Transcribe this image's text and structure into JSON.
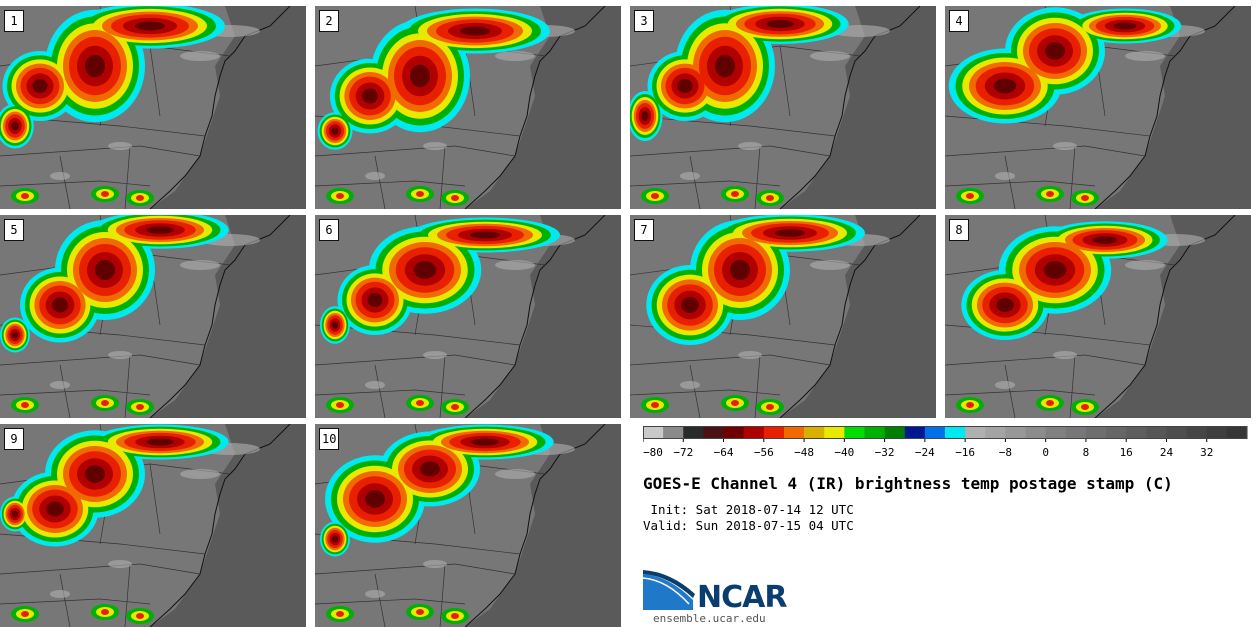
{
  "title": "GOES-E Channel 4 (IR) brightness temp postage stamp (C)",
  "init": " Init: Sat 2018-07-14 12 UTC",
  "valid": "Valid: Sun 2018-07-15 04 UTC",
  "logo": {
    "name": "NCAR",
    "url": "ensemble.ucar.edu"
  },
  "panels": [
    {
      "label": "1"
    },
    {
      "label": "2"
    },
    {
      "label": "3"
    },
    {
      "label": "4"
    },
    {
      "label": "5"
    },
    {
      "label": "6"
    },
    {
      "label": "7"
    },
    {
      "label": "8"
    },
    {
      "label": "9"
    },
    {
      "label": "10"
    }
  ],
  "colorbar": {
    "min": -80,
    "max": 40,
    "step": 4,
    "ticks": [
      "−80",
      "−72",
      "−64",
      "−56",
      "−48",
      "−40",
      "−32",
      "−24",
      "−16",
      "−8",
      "0",
      "8",
      "16",
      "24",
      "32"
    ],
    "colors": [
      "#c9c9c9",
      "#8a8a8a",
      "#2a2a2a",
      "#4a1212",
      "#700000",
      "#b00000",
      "#e82000",
      "#f06a00",
      "#d8b000",
      "#e8e800",
      "#00dd00",
      "#00b000",
      "#008000",
      "#001890",
      "#0070e8",
      "#00e8f0",
      "#b0b0b0",
      "#a4a4a4",
      "#989898",
      "#8c8c8c",
      "#808080",
      "#777777",
      "#6e6e6e",
      "#666666",
      "#5e5e5e",
      "#565656",
      "#4e4e4e",
      "#464646",
      "#3e3e3e",
      "#363636"
    ]
  }
}
